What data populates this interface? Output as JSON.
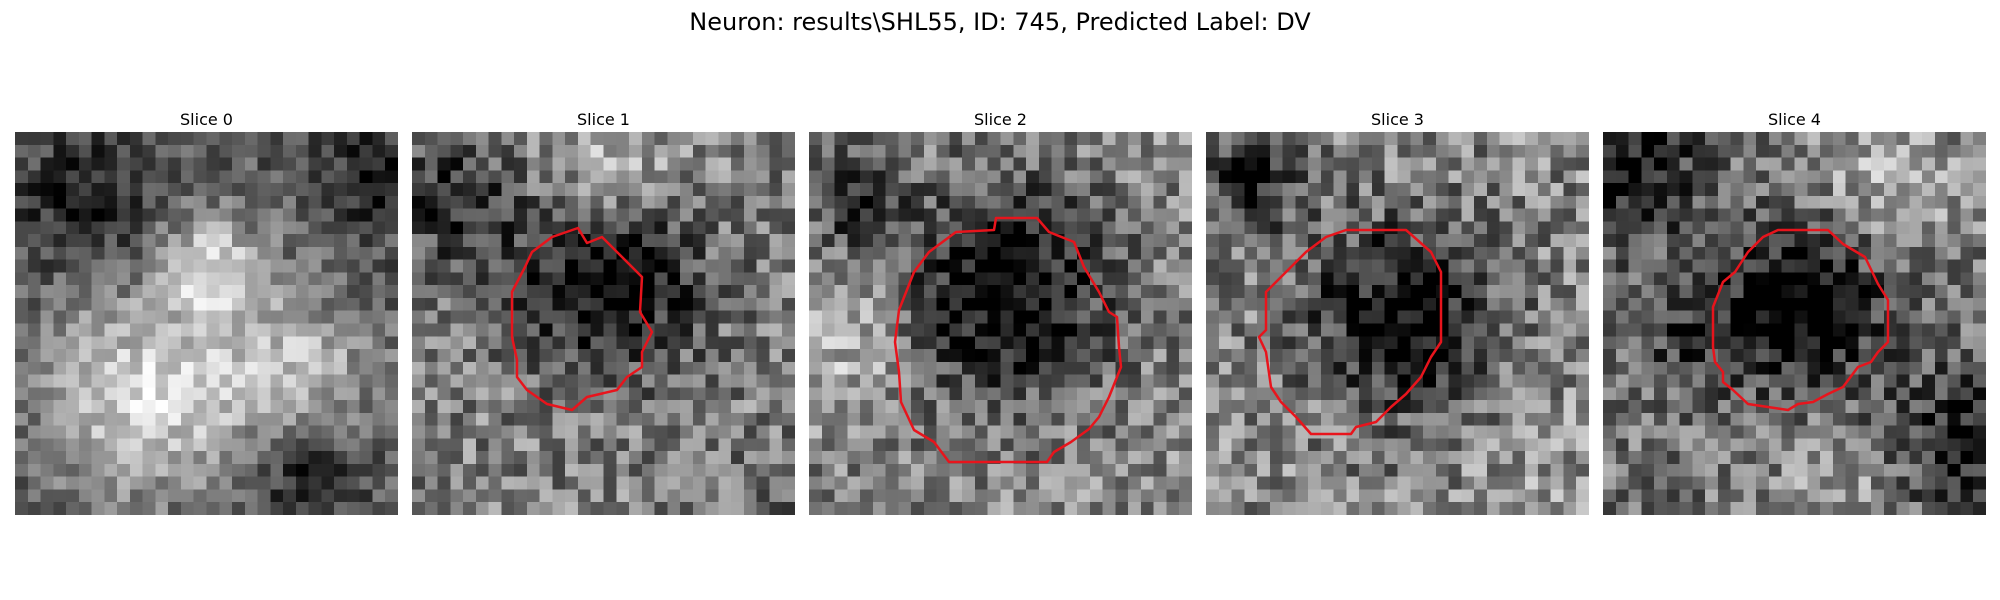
{
  "figure": {
    "title": "Neuron: results\\SHL55, ID: 745, Predicted Label: DV"
  },
  "slices": [
    {
      "title": "Slice 0",
      "has_contour": false
    },
    {
      "title": "Slice 1",
      "has_contour": true
    },
    {
      "title": "Slice 2",
      "has_contour": true
    },
    {
      "title": "Slice 3",
      "has_contour": true
    },
    {
      "title": "Slice 4",
      "has_contour": true
    }
  ],
  "colors": {
    "contour": "#e8141c",
    "background": "#ffffff"
  }
}
